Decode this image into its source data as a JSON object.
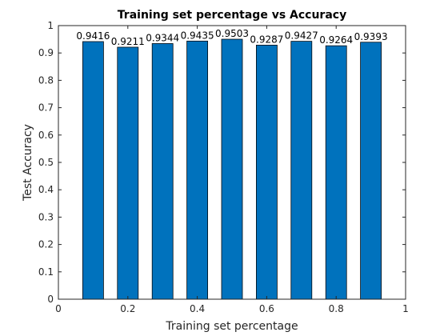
{
  "chart_data": {
    "type": "bar",
    "title": "Training set percentage vs Accuracy",
    "xlabel": "Training set percentage",
    "ylabel": "Test Accuracy",
    "x": [
      0.1,
      0.2,
      0.3,
      0.4,
      0.5,
      0.6,
      0.7,
      0.8,
      0.9
    ],
    "values": [
      0.9416,
      0.9211,
      0.9344,
      0.9435,
      0.9503,
      0.9287,
      0.9427,
      0.9264,
      0.9393
    ],
    "data_labels": [
      "0.9416",
      "0.9211",
      "0.9344",
      "0.9435",
      "0.9503",
      "0.9287",
      "0.9427",
      "0.9264",
      "0.9393"
    ],
    "xlim": [
      0,
      1
    ],
    "ylim": [
      0,
      1
    ],
    "xticks": [
      0,
      0.2,
      0.4,
      0.6,
      0.8,
      1
    ],
    "xtick_labels": [
      "0",
      "0.2",
      "0.4",
      "0.6",
      "0.8",
      "1"
    ],
    "yticks": [
      0,
      0.1,
      0.2,
      0.3,
      0.4,
      0.5,
      0.6,
      0.7,
      0.8,
      0.9,
      1
    ],
    "ytick_labels": [
      "0",
      "0.1",
      "0.2",
      "0.3",
      "0.4",
      "0.5",
      "0.6",
      "0.7",
      "0.8",
      "0.9",
      "1"
    ],
    "bar_width": 0.06,
    "bar_color": "#0072BD",
    "grid": false,
    "legend": "none"
  }
}
